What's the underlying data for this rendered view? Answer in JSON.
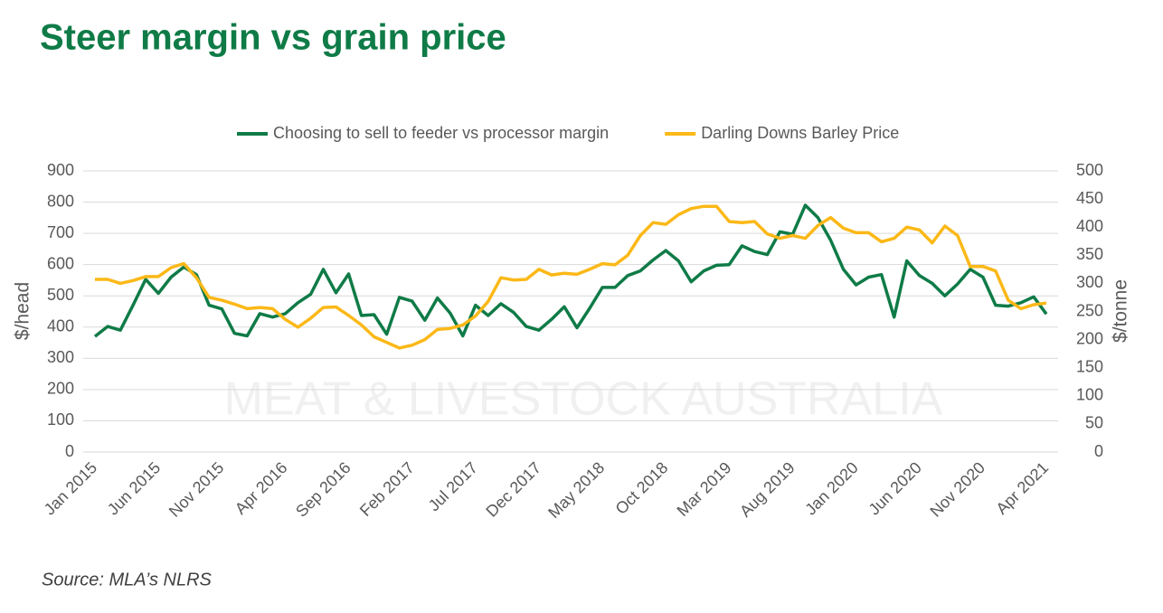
{
  "chart_data": {
    "type": "line",
    "title": "Steer margin vs grain price",
    "source": "Source: MLA’s NLRS",
    "watermark": "MEAT & LIVESTOCK AUSTRALIA",
    "ylabel": "$/head",
    "y2label": "$/tonne",
    "categories": [
      "Jan 2015",
      null,
      null,
      null,
      null,
      "Jun 2015",
      null,
      null,
      null,
      null,
      "Nov 2015",
      null,
      null,
      null,
      null,
      "Apr 2016",
      null,
      null,
      null,
      null,
      "Sep 2016",
      null,
      null,
      null,
      null,
      "Feb 2017",
      null,
      null,
      null,
      null,
      "Jul 2017",
      null,
      null,
      null,
      null,
      "Dec 2017",
      null,
      null,
      null,
      null,
      "May 2018",
      null,
      null,
      null,
      null,
      "Oct 2018",
      null,
      null,
      null,
      null,
      "Mar 2019",
      null,
      null,
      null,
      null,
      "Aug 2019",
      null,
      null,
      null,
      null,
      "Jan 2020",
      null,
      null,
      null,
      null,
      "Jun 2020",
      null,
      null,
      null,
      null,
      "Nov 2020",
      null,
      null,
      null,
      null,
      "Apr 2021"
    ],
    "ylim": [
      0,
      900
    ],
    "yticks": [
      0,
      100,
      200,
      300,
      400,
      500,
      600,
      700,
      800,
      900
    ],
    "y2lim": [
      0,
      500
    ],
    "y2ticks": [
      0,
      50,
      100,
      150,
      200,
      250,
      300,
      350,
      400,
      450,
      500
    ],
    "grid": true,
    "legend": "top",
    "series": [
      {
        "name": "Choosing to sell to feeder vs processor margin",
        "color": "#0f7b47",
        "values": [
          370,
          402,
          390,
          470,
          553,
          508,
          560,
          592,
          568,
          470,
          458,
          380,
          372,
          443,
          432,
          443,
          478,
          505,
          585,
          510,
          570,
          437,
          440,
          377,
          495,
          483,
          422,
          493,
          445,
          372,
          470,
          437,
          475,
          447,
          402,
          390,
          425,
          465,
          398,
          460,
          527,
          527,
          565,
          580,
          615,
          645,
          612,
          545,
          580,
          598,
          600,
          660,
          642,
          632,
          705,
          697,
          790,
          750,
          678,
          585,
          535,
          560,
          568,
          432,
          612,
          565,
          540,
          500,
          538,
          585,
          560,
          470,
          467,
          478,
          497,
          442
        ]
      },
      {
        "name": "Darling Downs Barley Price",
        "color": "#fbb817",
        "axis": "y2",
        "values": [
          307,
          307,
          300,
          305,
          312,
          312,
          328,
          335,
          310,
          275,
          270,
          263,
          255,
          257,
          255,
          236,
          222,
          238,
          257,
          258,
          243,
          226,
          205,
          195,
          185,
          190,
          200,
          218,
          220,
          226,
          242,
          268,
          310,
          306,
          307,
          325,
          315,
          318,
          316,
          325,
          335,
          333,
          350,
          385,
          408,
          405,
          422,
          433,
          437,
          437,
          410,
          408,
          410,
          388,
          380,
          385,
          380,
          403,
          417,
          398,
          390,
          390,
          374,
          380,
          400,
          395,
          372,
          402,
          385,
          330,
          330,
          322,
          270,
          255,
          262,
          265
        ]
      }
    ]
  }
}
